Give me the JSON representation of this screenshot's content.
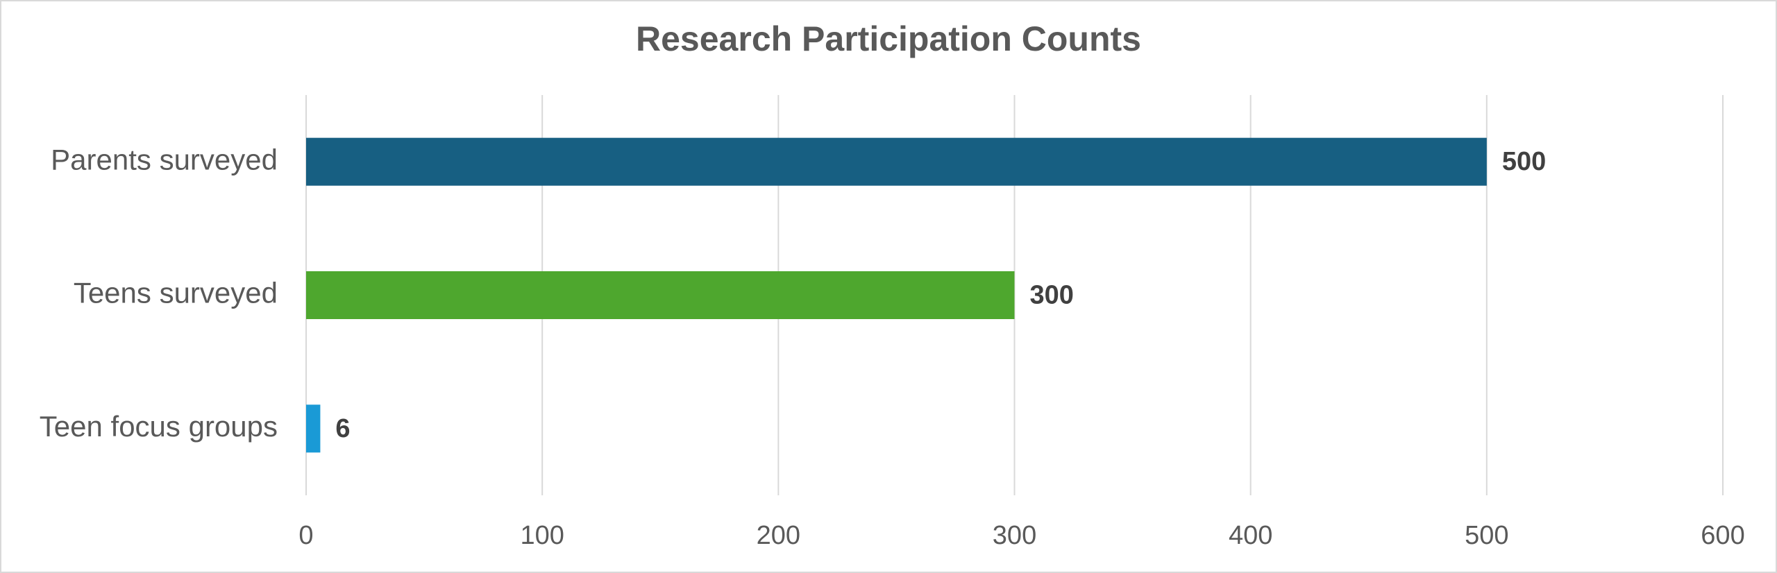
{
  "chart_data": {
    "type": "barh",
    "title": "Research Participation Counts",
    "categories": [
      "Parents surveyed",
      "Teens surveyed",
      "Teen focus groups"
    ],
    "values": [
      500,
      300,
      6
    ],
    "colors": [
      "#175f82",
      "#4ea72e",
      "#1a9ad6"
    ],
    "xlim": [
      0,
      600
    ],
    "xticks": [
      0,
      100,
      200,
      300,
      400,
      500,
      600
    ],
    "grid": true
  }
}
